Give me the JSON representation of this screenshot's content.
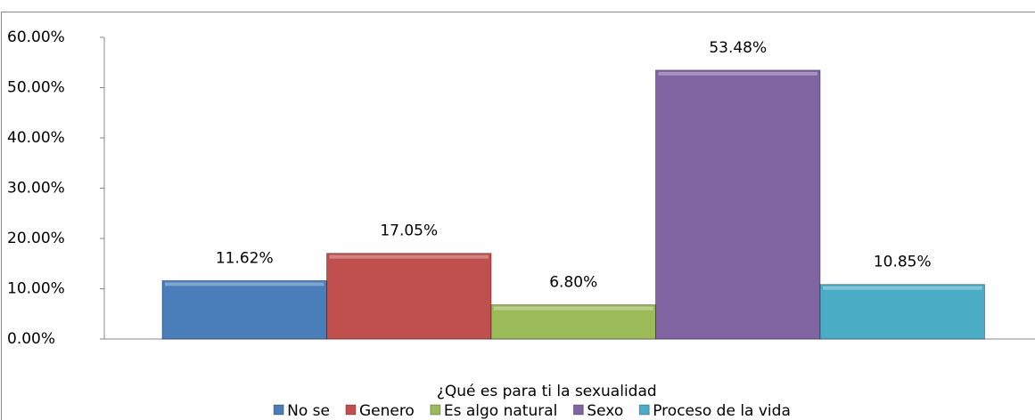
{
  "chart_data": {
    "type": "bar",
    "categories": [
      "¿Qué es para ti la sexualidad"
    ],
    "series": [
      {
        "name": "No se",
        "color": "#4a7ebb",
        "values": [
          11.62
        ],
        "value_labels": [
          "11.62%"
        ]
      },
      {
        "name": "Genero",
        "color": "#c0504d",
        "values": [
          17.05
        ],
        "value_labels": [
          "17.05%"
        ]
      },
      {
        "name": "Es algo natural",
        "color": "#9bbb59",
        "values": [
          6.8
        ],
        "value_labels": [
          "6.80%"
        ]
      },
      {
        "name": "Sexo",
        "color": "#8064a2",
        "values": [
          53.48
        ],
        "value_labels": [
          "53.48%"
        ]
      },
      {
        "name": "Proceso de la vida",
        "color": "#4bacc6",
        "values": [
          10.85
        ],
        "value_labels": [
          "10.85%"
        ]
      }
    ],
    "ylim": [
      0,
      60
    ],
    "yticks": [
      {
        "value": 0,
        "label": "0.00%"
      },
      {
        "value": 10,
        "label": "10.00%"
      },
      {
        "value": 20,
        "label": "20.00%"
      },
      {
        "value": 30,
        "label": "30.00%"
      },
      {
        "value": 40,
        "label": "40.00%"
      },
      {
        "value": 50,
        "label": "50.00%"
      },
      {
        "value": 60,
        "label": "60.00%"
      }
    ],
    "legend": "bottom"
  }
}
